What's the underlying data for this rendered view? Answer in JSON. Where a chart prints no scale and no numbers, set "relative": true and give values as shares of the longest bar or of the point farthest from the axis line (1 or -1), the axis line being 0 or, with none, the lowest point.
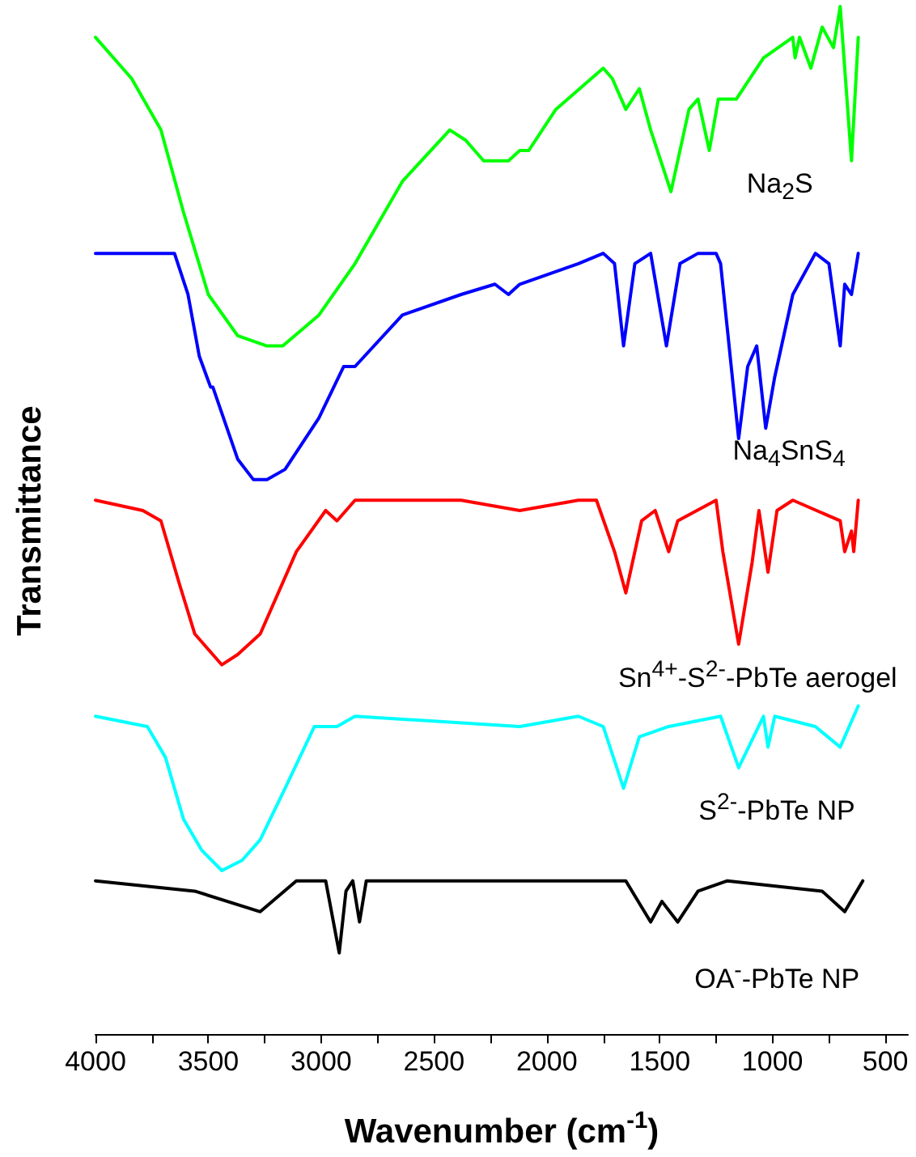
{
  "chart_data": {
    "type": "line",
    "relative": true,
    "xlabel": "Wavenumber (cm$^{-1}$)",
    "ylabel": "Transmittance",
    "xlim": [
      4000,
      400
    ],
    "xticks": [
      4000,
      {
        "value": 3750,
        "label": null
      },
      3500,
      {
        "value": 3250,
        "label": null
      },
      3000,
      {
        "value": 2750,
        "label": null
      },
      2500,
      {
        "value": 2250,
        "label": null
      },
      2000,
      {
        "value": 1750,
        "label": null
      },
      1500,
      {
        "value": 1250,
        "label": null
      },
      1000,
      {
        "value": 750,
        "label": null
      },
      500
    ],
    "grid": false,
    "legend": false,
    "series": [
      {
        "name": "Na$_{2}$S",
        "color": "#00ff00",
        "x": [
          4000,
          3840,
          3710,
          3610,
          3500,
          3370,
          3240,
          3170,
          3010,
          2850,
          2640,
          2430,
          2360,
          2280,
          2170,
          2120,
          2080,
          1960,
          1750,
          1710,
          1650,
          1590,
          1540,
          1450,
          1370,
          1330,
          1280,
          1240,
          1160,
          1040,
          910,
          900,
          880,
          830,
          780,
          730,
          700,
          650,
          620
        ],
        "values": [
          0.97,
          0.93,
          0.88,
          0.8,
          0.72,
          0.68,
          0.67,
          0.67,
          0.7,
          0.75,
          0.83,
          0.88,
          0.87,
          0.85,
          0.85,
          0.86,
          0.86,
          0.9,
          0.94,
          0.93,
          0.9,
          0.92,
          0.88,
          0.82,
          0.9,
          0.91,
          0.86,
          0.91,
          0.91,
          0.95,
          0.97,
          0.95,
          0.97,
          0.94,
          0.98,
          0.96,
          1.0,
          0.85,
          0.97
        ]
      },
      {
        "name": "Na$_{4}$SnS$_{4}$",
        "color": "#0000ff",
        "x": [
          4000,
          3840,
          3690,
          3650,
          3590,
          3540,
          3490,
          3480,
          3370,
          3300,
          3240,
          3160,
          3010,
          2900,
          2850,
          2640,
          2380,
          2230,
          2170,
          2120,
          1860,
          1750,
          1700,
          1660,
          1610,
          1540,
          1470,
          1410,
          1330,
          1250,
          1230,
          1150,
          1110,
          1070,
          1030,
          990,
          910,
          810,
          750,
          700,
          680,
          650,
          620
        ],
        "values": [
          0.76,
          0.76,
          0.76,
          0.76,
          0.72,
          0.66,
          0.63,
          0.63,
          0.56,
          0.54,
          0.54,
          0.55,
          0.6,
          0.65,
          0.65,
          0.7,
          0.72,
          0.73,
          0.72,
          0.73,
          0.75,
          0.76,
          0.75,
          0.67,
          0.75,
          0.76,
          0.67,
          0.75,
          0.76,
          0.76,
          0.75,
          0.58,
          0.65,
          0.67,
          0.59,
          0.64,
          0.72,
          0.76,
          0.75,
          0.67,
          0.73,
          0.72,
          0.76
        ]
      },
      {
        "name": "Sn$^{4+}$-S$^{2-}$-PbTe aerogel",
        "color": "#ff0000",
        "x": [
          4000,
          3790,
          3710,
          3630,
          3560,
          3440,
          3370,
          3270,
          3110,
          2980,
          2930,
          2850,
          2640,
          2380,
          2120,
          1860,
          1780,
          1700,
          1650,
          1580,
          1520,
          1460,
          1420,
          1250,
          1220,
          1150,
          1090,
          1060,
          1020,
          980,
          910,
          700,
          680,
          650,
          640,
          620
        ],
        "values": [
          0.52,
          0.51,
          0.5,
          0.44,
          0.39,
          0.36,
          0.37,
          0.39,
          0.47,
          0.51,
          0.5,
          0.52,
          0.52,
          0.52,
          0.51,
          0.52,
          0.52,
          0.47,
          0.43,
          0.5,
          0.51,
          0.47,
          0.5,
          0.52,
          0.47,
          0.38,
          0.46,
          0.51,
          0.45,
          0.51,
          0.52,
          0.5,
          0.47,
          0.49,
          0.47,
          0.52
        ]
      },
      {
        "name": "S$^{2-}$-PbTe NP",
        "color": "#00ffff",
        "x": [
          4000,
          3770,
          3690,
          3610,
          3530,
          3440,
          3350,
          3270,
          3160,
          3030,
          2930,
          2850,
          2120,
          1860,
          1750,
          1660,
          1590,
          1460,
          1230,
          1150,
          1040,
          1020,
          990,
          810,
          700,
          620
        ],
        "values": [
          0.31,
          0.3,
          0.27,
          0.21,
          0.18,
          0.16,
          0.17,
          0.19,
          0.24,
          0.3,
          0.3,
          0.31,
          0.3,
          0.31,
          0.3,
          0.24,
          0.29,
          0.3,
          0.31,
          0.26,
          0.31,
          0.28,
          0.31,
          0.3,
          0.28,
          0.32
        ]
      },
      {
        "name": "OA$^{-}$-PbTe NP",
        "color": "#000000",
        "x": [
          4000,
          3560,
          3270,
          3110,
          2980,
          2920,
          2890,
          2860,
          2830,
          2800,
          1650,
          1540,
          1490,
          1420,
          1330,
          1200,
          780,
          680,
          600
        ],
        "values": [
          0.15,
          0.14,
          0.12,
          0.15,
          0.15,
          0.08,
          0.14,
          0.15,
          0.11,
          0.15,
          0.15,
          0.11,
          0.13,
          0.11,
          0.14,
          0.15,
          0.14,
          0.12,
          0.15
        ]
      }
    ]
  }
}
